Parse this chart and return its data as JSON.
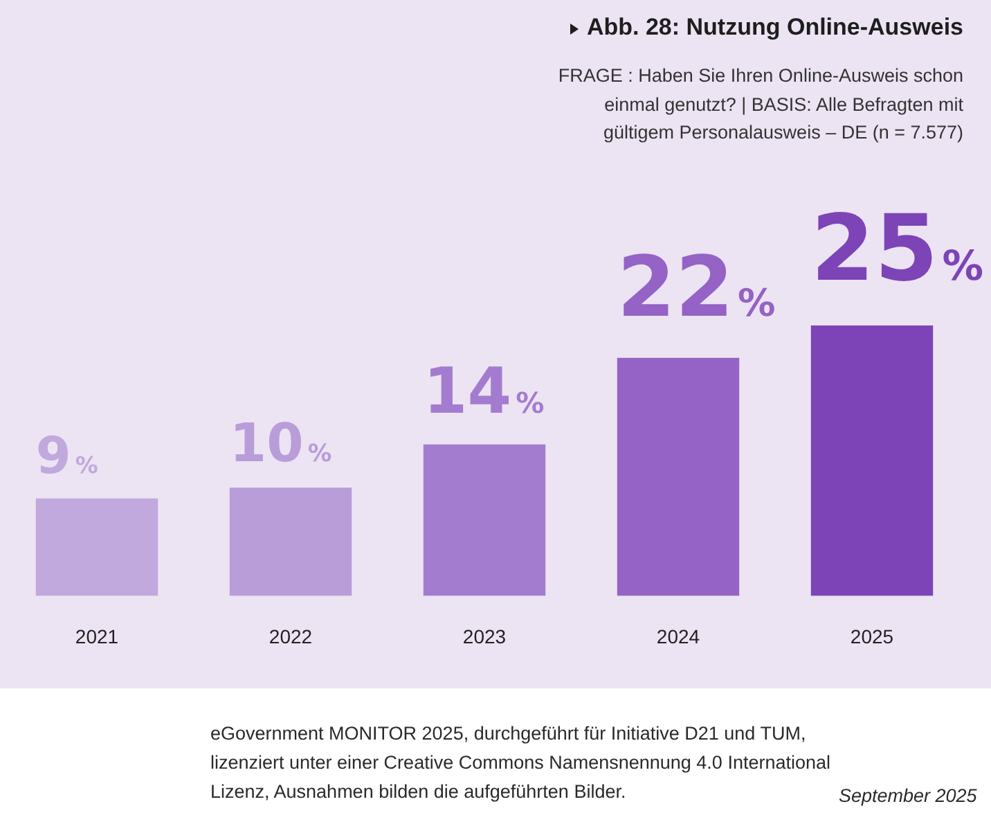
{
  "chart_data": {
    "type": "bar",
    "title": "Abb. 28: Nutzung Online-Ausweis",
    "subtitle": "FRAGE : Haben Sie Ihren Online-Ausweis schon einmal genutzt? | BASIS: Alle Befragten mit gültigem Personalausweis – DE (n = 7.577)",
    "categories": [
      "2021",
      "2022",
      "2023",
      "2024",
      "2025"
    ],
    "values": [
      9,
      10,
      14,
      22,
      25
    ],
    "colors": [
      "#c1a8dd",
      "#b99dd9",
      "#a47ccf",
      "#9463c5",
      "#7c44b7"
    ],
    "value_labels": [
      "9%",
      "10%",
      "14%",
      "22%",
      "25%"
    ],
    "annotations": [
      "eGovernment MONITOR 2025, durchgeführt für Initiative D21 und TUM, lizenziert unter einer Creative Commons Namensnennung 4.0 International Lizenz, Ausnahmen bilden die aufgeführten Bilder.",
      "September 2025"
    ]
  }
}
